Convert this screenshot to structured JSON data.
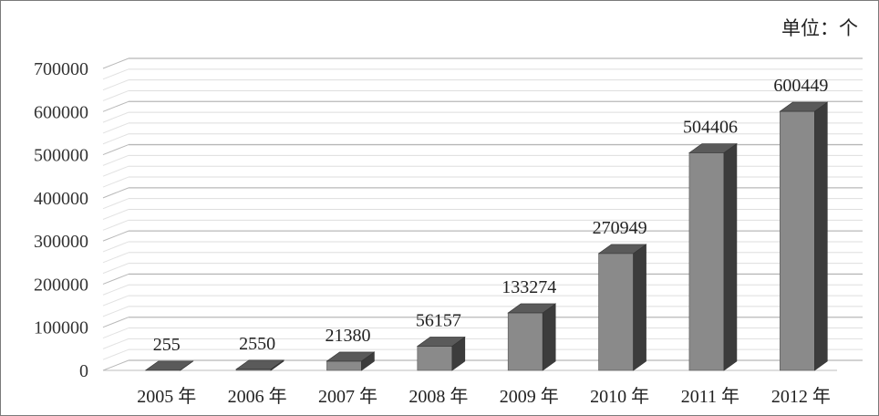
{
  "unit_label": "单位：个",
  "chart_data": {
    "type": "bar",
    "categories": [
      "2005 年",
      "2006 年",
      "2007 年",
      "2008 年",
      "2009 年",
      "2010 年",
      "2011 年",
      "2012 年"
    ],
    "values": [
      255,
      2550,
      21380,
      56157,
      133274,
      270949,
      504406,
      600449
    ],
    "data_labels": [
      "255",
      "2550",
      "21380",
      "56157",
      "133274",
      "270949",
      "504406",
      "600449"
    ],
    "yticks": [
      "0",
      "100000",
      "200000",
      "300000",
      "400000",
      "500000",
      "600000",
      "700000"
    ],
    "ylim": [
      0,
      700000
    ],
    "three_d": true,
    "grid": true,
    "legend": "none",
    "colors": {
      "bar_front": "#8a8a8a",
      "bar_top": "#5a5a5a",
      "bar_side": "#3c3c3c",
      "grid": "#c8c8c8"
    }
  }
}
